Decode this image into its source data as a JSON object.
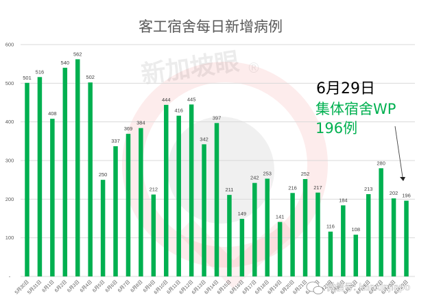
{
  "chart_data": {
    "type": "bar",
    "title": "客工宿舍每日新增病例",
    "xlabel": "",
    "ylabel": "",
    "ylim": [
      0,
      600
    ],
    "yticks": [
      0,
      100,
      200,
      300,
      400,
      500,
      600
    ],
    "grid": true,
    "legend": null,
    "bar_color": "#00b050",
    "categories": [
      "5月30日",
      "5月31日",
      "6月1日",
      "6月2日",
      "6月3日",
      "6月4日",
      "6月5日",
      "6月6日",
      "6月7日",
      "6月8日",
      "6月9日",
      "6月10日",
      "6月11日",
      "6月12日",
      "6月13日",
      "6月14日",
      "6月15日",
      "6月16日",
      "6月17日",
      "6月18日",
      "6月19日",
      "6月20日",
      "6月21日",
      "6月22日",
      "6月23日",
      "6月24日",
      "6月25日",
      "6月26日",
      "6月27日",
      "6月28日",
      "6月29日"
    ],
    "values": [
      501,
      516,
      408,
      540,
      562,
      502,
      250,
      337,
      369,
      384,
      212,
      444,
      416,
      445,
      342,
      397,
      211,
      149,
      242,
      253,
      141,
      216,
      252,
      217,
      116,
      184,
      108,
      213,
      280,
      202,
      196
    ],
    "annotations": [
      {
        "line1": "6月29日",
        "line2": "集体宿舍WP",
        "line3": "196例",
        "points_to": "6月29日"
      }
    ]
  },
  "annotation": {
    "date": "6月29日",
    "line2": "集体宿舍WP",
    "line3": "196例",
    "date_color": "#000000",
    "text_color": "#00b050"
  },
  "watermark": {
    "text": "新加坡眼",
    "registered": "®",
    "wechat_label": "微信号: kanxinjiapo"
  },
  "colors": {
    "bar": "#00b050",
    "grid": "#d9d9d9",
    "axis_text": "#595959",
    "title": "#595959",
    "watermark_ring": "#f4c7c7"
  }
}
